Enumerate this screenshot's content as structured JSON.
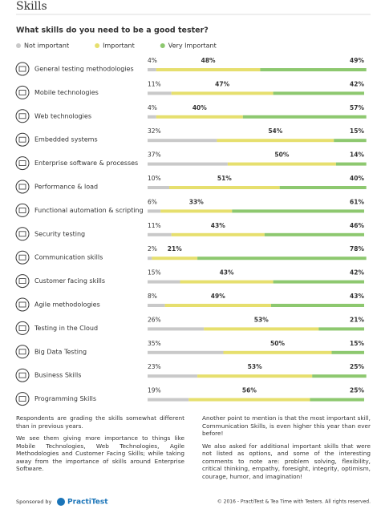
{
  "page_title": "Skills",
  "chart_data": {
    "type": "stacked-bar",
    "title": "What skills do you need to be a good tester?",
    "categories": [
      "General testing methodologies",
      "Mobile technologies",
      "Web technologies",
      "Embedded systems",
      "Enterprise software & processes",
      "Performance & load",
      "Functional automation & scripting",
      "Security testing",
      "Communication skills",
      "Customer facing skills",
      "Agile methodologies",
      "Testing in the Cloud",
      "Big Data Testing",
      "Business Skills",
      "Programming Skills"
    ],
    "series": [
      {
        "name": "Not important",
        "color": "#c9c9c9",
        "values": [
          4,
          11,
          4,
          32,
          37,
          10,
          6,
          11,
          2,
          15,
          8,
          26,
          35,
          23,
          19
        ],
        "value_labels": [
          "4%",
          "11%",
          "4%",
          "32%",
          "37%",
          "10%",
          "6%",
          "11%",
          "2%",
          "15%",
          "8%",
          "26%",
          "35%",
          "23%",
          "19%"
        ]
      },
      {
        "name": "Important",
        "color": "#e6df6e",
        "values": [
          48,
          47,
          40,
          54,
          50,
          51,
          33,
          43,
          21,
          43,
          49,
          53,
          50,
          53,
          56
        ],
        "value_labels": [
          "48%",
          "47%",
          "40%",
          "54%",
          "50%",
          "51%",
          "33%",
          "43%",
          "21%",
          "43%",
          "49%",
          "53%",
          "50%",
          "53%",
          "56%"
        ]
      },
      {
        "name": "Very Important",
        "color": "#8dc86f",
        "values": [
          49,
          42,
          57,
          15,
          14,
          40,
          61,
          46,
          78,
          42,
          43,
          21,
          15,
          25,
          25
        ],
        "value_labels": [
          "49%",
          "42%",
          "57%",
          "15%",
          "14%",
          "40%",
          "61%",
          "46%",
          "78%",
          "42%",
          "43%",
          "21%",
          "15%",
          "25%",
          "25%"
        ]
      }
    ],
    "xlim": [
      0,
      100
    ]
  },
  "left_column": [
    "Respondents are grading the skills somewhat different than in previous years.",
    "We see them giving more importance to things like Mobile Technologies, Web Technologies, Agile Methodologies and Customer Facing Skills; while taking away from the importance of skills around Enterprise Software."
  ],
  "right_column": [
    "Another point to mention is that the most important skill, Communication Skills, is even higher this year than ever before!",
    "We also asked for additional important skills that were not listed as options, and some of the interesting comments to note are: problem solving, flexibility, critical thinking, empathy, foresight, integrity, optimism, courage, humor, and imagination!"
  ],
  "footer": {
    "sponsored": "Sponsored by",
    "brand": "PractiTest",
    "copyright": "© 2016 - PractiTest & Tea Time with Testers. All rights reserved."
  }
}
